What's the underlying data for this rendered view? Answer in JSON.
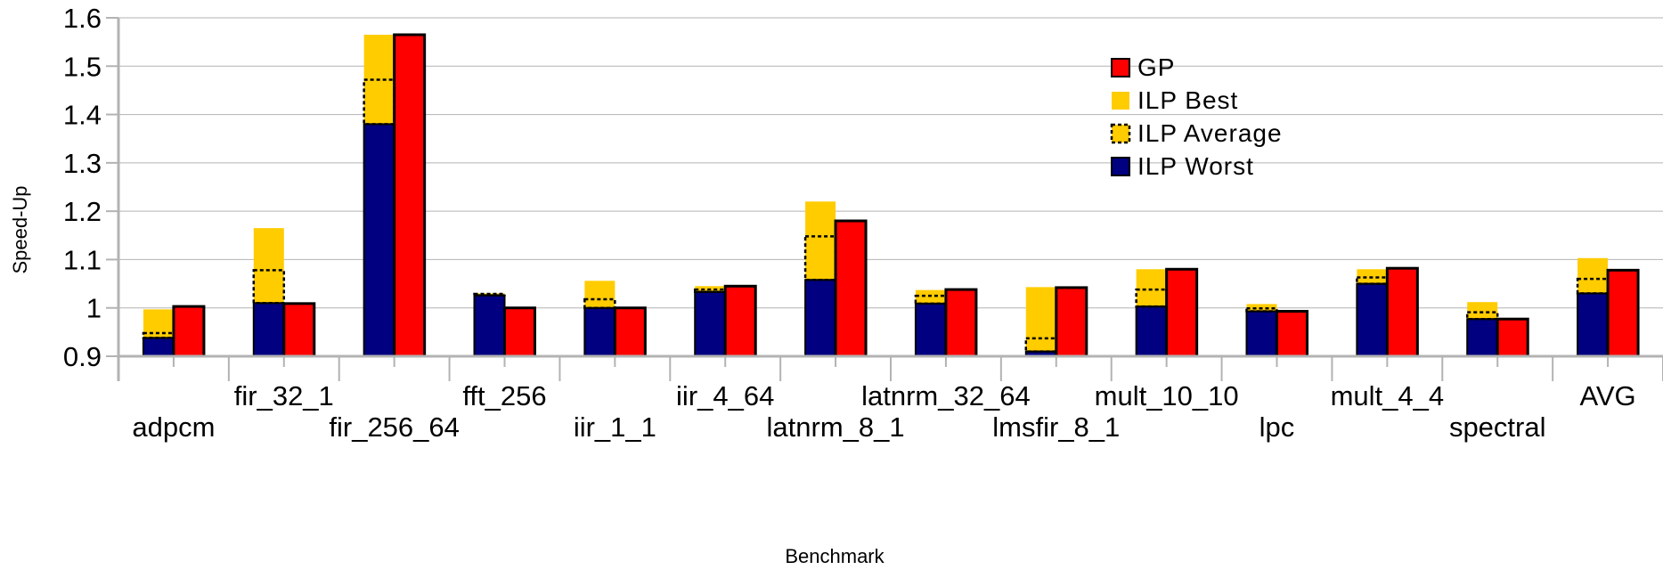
{
  "chart_data": {
    "type": "bar",
    "xlabel": "Benchmark",
    "ylabel": "Speed-Up",
    "ylim": [
      0.9,
      1.6
    ],
    "yticks": [
      "0.9",
      "1",
      "1.1",
      "1.2",
      "1.3",
      "1.4",
      "1.5",
      "1.6"
    ],
    "grid": true,
    "legend_position": "right",
    "categories": [
      "adpcm",
      "fir_32_1",
      "fir_256_64",
      "fft_256",
      "iir_1_1",
      "iir_4_64",
      "latnrm_8_1",
      "latnrm_32_64",
      "lmsfir_8_1",
      "mult_10_10",
      "lpc",
      "mult_4_4",
      "spectral",
      "AVG"
    ],
    "label_row": [
      1,
      0,
      1,
      0,
      1,
      0,
      1,
      0,
      1,
      0,
      1,
      0,
      1,
      0
    ],
    "series": [
      {
        "name": "GP",
        "color": "#ff0000",
        "values": [
          1.003,
          1.009,
          1.565,
          1.0,
          1.0,
          1.045,
          1.18,
          1.038,
          1.042,
          1.08,
          0.993,
          1.082,
          0.977,
          1.078
        ]
      },
      {
        "name": "ILP Best",
        "color": "#ffcc00",
        "values": [
          0.997,
          1.165,
          1.565,
          1.03,
          1.056,
          1.045,
          1.22,
          1.037,
          1.043,
          1.08,
          1.008,
          1.08,
          1.012,
          1.103
        ]
      },
      {
        "name": "ILP Average",
        "color": "#ffcc00",
        "values": [
          0.948,
          1.078,
          1.472,
          1.029,
          1.018,
          1.038,
          1.148,
          1.025,
          0.937,
          1.038,
          0.999,
          1.063,
          0.991,
          1.06
        ]
      },
      {
        "name": "ILP Worst",
        "color": "#000080",
        "values": [
          0.938,
          1.01,
          1.38,
          1.026,
          1.0,
          1.033,
          1.058,
          1.009,
          0.91,
          1.003,
          0.993,
          1.05,
          0.977,
          1.03
        ]
      }
    ]
  }
}
